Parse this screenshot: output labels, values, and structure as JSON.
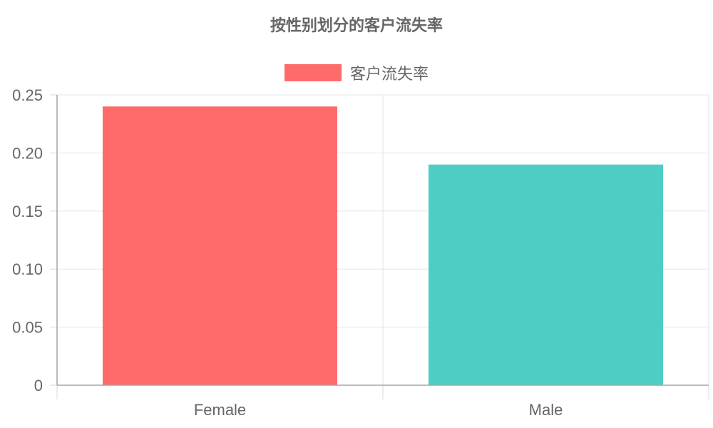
{
  "chart_data": {
    "type": "bar",
    "title": "按性别划分的客户流失率",
    "categories": [
      "Female",
      "Male"
    ],
    "series": [
      {
        "name": "客户流失率",
        "values": [
          0.24,
          0.19
        ]
      }
    ],
    "bar_colors": [
      "#ff6b6b",
      "#4ecdc4"
    ],
    "legend_color": "#ff6b6b",
    "ylim": [
      0,
      0.25
    ],
    "yticks": [
      "0",
      "0.05",
      "0.10",
      "0.15",
      "0.20",
      "0.25"
    ],
    "ytick_values": [
      0,
      0.05,
      0.1,
      0.15,
      0.2,
      0.25
    ],
    "grid": true,
    "legend_position": "top"
  }
}
